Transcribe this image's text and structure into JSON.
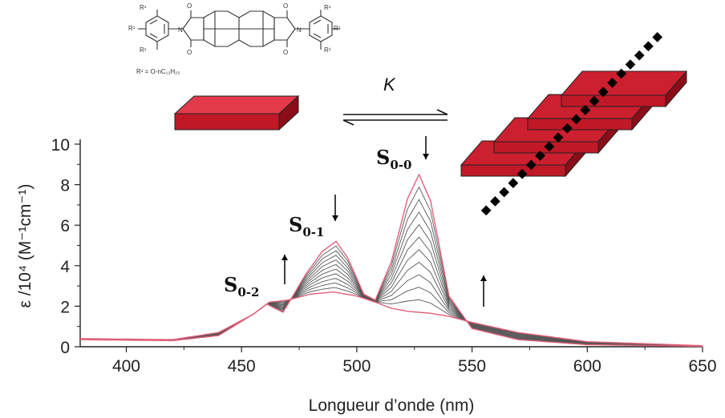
{
  "chart_data": {
    "type": "line",
    "title": "",
    "xlabel": "Longueur d’onde (nm)",
    "ylabel": "ε /10⁴ (M⁻¹cm⁻¹)",
    "xlim": [
      380,
      650
    ],
    "ylim": [
      0,
      10
    ],
    "xticks": [
      400,
      450,
      500,
      550,
      600,
      650
    ],
    "yticks": [
      0,
      2,
      4,
      6,
      8,
      10
    ],
    "n_curves": 12,
    "grid": false,
    "legend": "none",
    "colors": {
      "extreme_curves": "#e0607a",
      "intermediate_curves": "#555555",
      "blocks": "#cc1f2f",
      "arrows": "#000000"
    },
    "series": [
      {
        "name": "",
        "x": [
          380,
          420,
          440,
          455,
          462,
          470,
          480,
          490,
          500,
          508,
          515,
          522,
          527,
          532,
          540,
          550,
          570,
          600,
          650
        ],
        "y": [
          0.4,
          0.35,
          0.7,
          1.6,
          2.2,
          2.3,
          2.6,
          2.7,
          2.5,
          2.2,
          1.9,
          1.75,
          1.7,
          1.65,
          1.5,
          1.2,
          0.7,
          0.25,
          0.05
        ]
      },
      {
        "name": "",
        "x": [
          380,
          420,
          440,
          455,
          461,
          468,
          478,
          485,
          491,
          496,
          503,
          508,
          515,
          522,
          527,
          532,
          540,
          550,
          570,
          600,
          650
        ],
        "y": [
          0.35,
          0.3,
          0.55,
          1.6,
          2.1,
          1.7,
          3.6,
          4.7,
          5.2,
          4.4,
          2.6,
          2.3,
          4.2,
          7.3,
          8.5,
          7.2,
          2.5,
          0.9,
          0.35,
          0.1,
          0.02
        ]
      }
    ],
    "annotations": {
      "peaks": [
        {
          "main": "S",
          "sub": "0-0",
          "x": 527
        },
        {
          "main": "S",
          "sub": "0-1",
          "x": 491
        },
        {
          "main": "S",
          "sub": "0-2",
          "x": 462
        }
      ],
      "equilibrium_label": "K",
      "structure_labels": [
        "R¹",
        "R¹",
        "R¹",
        "R¹",
        "R¹",
        "R¹",
        "O",
        "O",
        "O",
        "O",
        "N",
        "N",
        "R¹ = O-nC₁₂H₂₅"
      ]
    }
  }
}
